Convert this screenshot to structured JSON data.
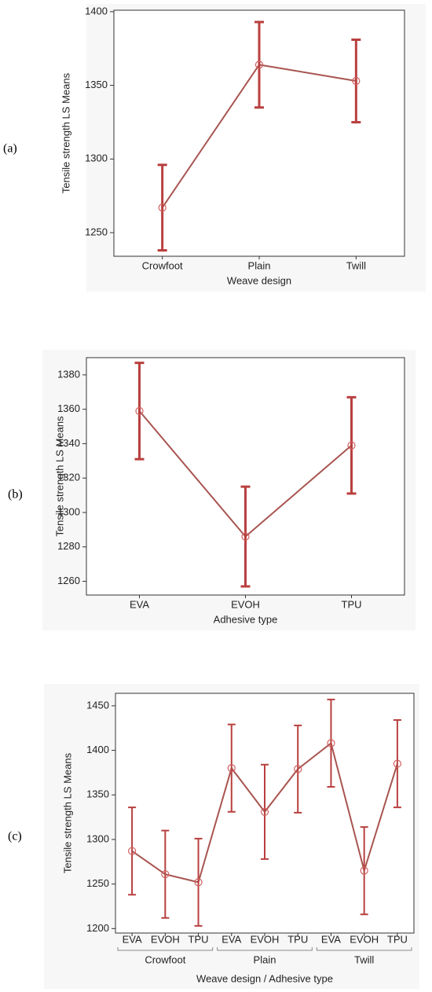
{
  "chart_data": [
    {
      "type": "errorbar",
      "panel": "(a)",
      "y_label": "Tensile strength LS Means",
      "x_label": "Weave design",
      "categories": [
        "Crowfoot",
        "Plain",
        "Twill"
      ],
      "values": [
        1267,
        1364,
        1353
      ],
      "errors": [
        29,
        29,
        28
      ],
      "color": "#b8403f",
      "ylim": [
        1234,
        1401
      ],
      "yticks": [
        1250,
        1300,
        1350,
        1400
      ]
    },
    {
      "type": "errorbar",
      "panel": "(b)",
      "y_label": "Tensile strength LS Means",
      "x_label": "Adhesive type",
      "categories": [
        "EVA",
        "EVOH",
        "TPU"
      ],
      "values": [
        1359,
        1286,
        1339
      ],
      "errors": [
        28,
        29,
        28
      ],
      "color": "#b8403f",
      "ylim": [
        1252,
        1390
      ],
      "yticks": [
        1260,
        1280,
        1300,
        1320,
        1340,
        1360,
        1380
      ]
    },
    {
      "type": "errorbar",
      "panel": "(c)",
      "y_label": "Tensile strength LS Means",
      "x_label": "Weave design / Adhesive type",
      "categories": [
        "EVA",
        "EVOH",
        "TPU",
        "EVA",
        "EVOH",
        "TPU",
        "EVA",
        "EVOH",
        "TPU"
      ],
      "groups": [
        "Crowfoot",
        "Plain",
        "Twill"
      ],
      "values": [
        1287,
        1261,
        1252,
        1380,
        1331,
        1379,
        1408,
        1265,
        1385
      ],
      "errors": [
        49,
        49,
        49,
        49,
        53,
        49,
        49,
        49,
        49
      ],
      "color": "#b8403f",
      "ylim": [
        1195,
        1464
      ],
      "yticks": [
        1200,
        1250,
        1300,
        1350,
        1400,
        1450
      ]
    }
  ]
}
